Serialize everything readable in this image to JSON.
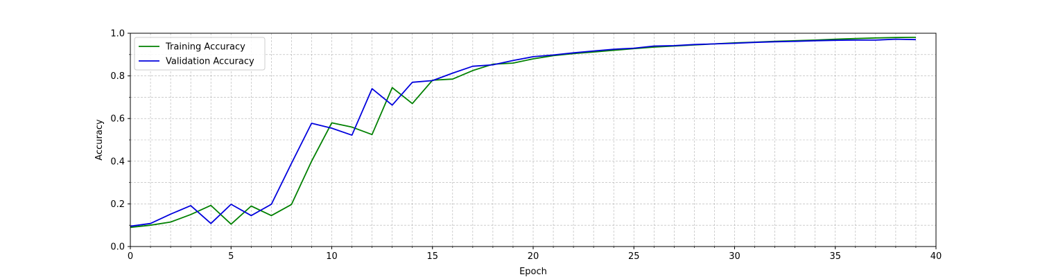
{
  "chart_data": {
    "type": "line",
    "title": "",
    "xlabel": "Epoch",
    "ylabel": "Accuracy",
    "xlim": [
      0,
      40
    ],
    "ylim": [
      0,
      1.0
    ],
    "xticks": [
      0,
      5,
      10,
      15,
      20,
      25,
      30,
      35,
      40
    ],
    "xtick_labels": [
      "0",
      "5",
      "10",
      "15",
      "20",
      "25",
      "30",
      "35",
      "40"
    ],
    "yticks": [
      0,
      0.2,
      0.4,
      0.6,
      0.8,
      1.0
    ],
    "ytick_labels": [
      "0.0",
      "0.2",
      "0.4",
      "0.6",
      "0.8",
      "1.0"
    ],
    "x_minor_step": 1,
    "y_minor_step": 0.1,
    "grid": true,
    "legend_position": "upper-left",
    "x": [
      0,
      1,
      2,
      3,
      4,
      5,
      6,
      7,
      8,
      9,
      10,
      11,
      12,
      13,
      14,
      15,
      16,
      17,
      18,
      19,
      20,
      21,
      22,
      23,
      24,
      25,
      26,
      27,
      28,
      29,
      30,
      31,
      32,
      33,
      34,
      35,
      36,
      37,
      38,
      39
    ],
    "series": [
      {
        "name": "Training Accuracy",
        "color": "#008000",
        "values": [
          0.09,
          0.1,
          0.115,
          0.15,
          0.193,
          0.105,
          0.19,
          0.145,
          0.197,
          0.4,
          0.58,
          0.56,
          0.525,
          0.745,
          0.67,
          0.78,
          0.785,
          0.825,
          0.855,
          0.86,
          0.88,
          0.895,
          0.905,
          0.912,
          0.92,
          0.928,
          0.935,
          0.94,
          0.945,
          0.95,
          0.955,
          0.958,
          0.962,
          0.965,
          0.968,
          0.972,
          0.975,
          0.978,
          0.98,
          0.981
        ]
      },
      {
        "name": "Validation Accuracy",
        "color": "#0000dd",
        "values": [
          0.095,
          0.108,
          0.152,
          0.192,
          0.108,
          0.198,
          0.145,
          0.198,
          0.39,
          0.578,
          0.555,
          0.522,
          0.74,
          0.663,
          0.77,
          0.778,
          0.813,
          0.845,
          0.852,
          0.872,
          0.89,
          0.898,
          0.908,
          0.917,
          0.925,
          0.93,
          0.94,
          0.942,
          0.947,
          0.95,
          0.953,
          0.957,
          0.96,
          0.962,
          0.965,
          0.967,
          0.968,
          0.968,
          0.972,
          0.97
        ]
      }
    ]
  }
}
